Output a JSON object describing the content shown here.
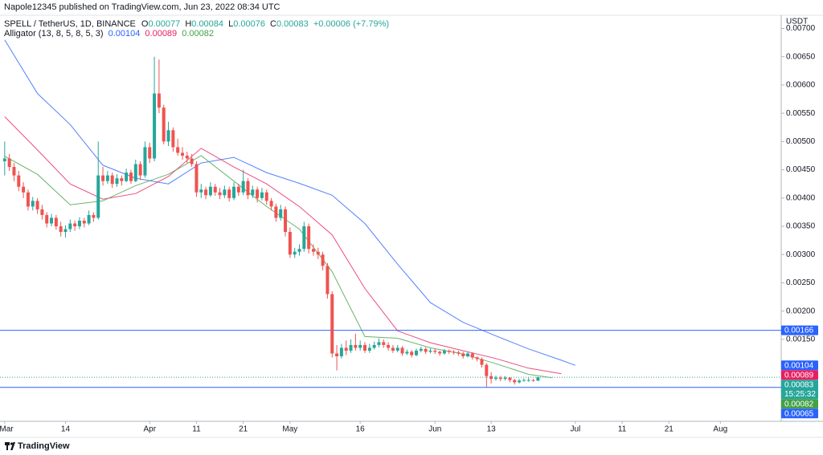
{
  "header": {
    "publisher": "Napole12345 published on TradingView.com, Jun 23, 2022 08:34 UTC",
    "footer": "TradingView"
  },
  "chart_data": {
    "type": "candlestick",
    "title": "SPELL / TetherUS, 1D, BINANCE",
    "ohlc_labels": [
      "O",
      "H",
      "L",
      "C"
    ],
    "change": "+0.00006 (+7.79%)",
    "indicator": "Alligator (13, 8, 5, 8, 5, 3)",
    "currency": "USDT",
    "countdown": "15:25:32",
    "up_color": "#26a69a",
    "down_color": "#ef5350",
    "x": [
      "2022-03-01",
      "2022-03-02",
      "2022-03-03",
      "2022-03-04",
      "2022-03-05",
      "2022-03-06",
      "2022-03-07",
      "2022-03-08",
      "2022-03-09",
      "2022-03-10",
      "2022-03-11",
      "2022-03-12",
      "2022-03-13",
      "2022-03-14",
      "2022-03-15",
      "2022-03-16",
      "2022-03-17",
      "2022-03-18",
      "2022-03-19",
      "2022-03-20",
      "2022-03-21",
      "2022-03-22",
      "2022-03-23",
      "2022-03-24",
      "2022-03-25",
      "2022-03-26",
      "2022-03-27",
      "2022-03-28",
      "2022-03-29",
      "2022-03-30",
      "2022-03-31",
      "2022-04-01",
      "2022-04-02",
      "2022-04-03",
      "2022-04-04",
      "2022-04-05",
      "2022-04-06",
      "2022-04-07",
      "2022-04-08",
      "2022-04-09",
      "2022-04-10",
      "2022-04-11",
      "2022-04-12",
      "2022-04-13",
      "2022-04-14",
      "2022-04-15",
      "2022-04-16",
      "2022-04-17",
      "2022-04-18",
      "2022-04-19",
      "2022-04-20",
      "2022-04-21",
      "2022-04-22",
      "2022-04-23",
      "2022-04-24",
      "2022-04-25",
      "2022-04-26",
      "2022-04-27",
      "2022-04-28",
      "2022-04-29",
      "2022-04-30",
      "2022-05-01",
      "2022-05-02",
      "2022-05-03",
      "2022-05-04",
      "2022-05-05",
      "2022-05-06",
      "2022-05-07",
      "2022-05-08",
      "2022-05-09",
      "2022-05-10",
      "2022-05-11",
      "2022-05-12",
      "2022-05-13",
      "2022-05-14",
      "2022-05-15",
      "2022-05-16",
      "2022-05-17",
      "2022-05-18",
      "2022-05-19",
      "2022-05-20",
      "2022-05-21",
      "2022-05-22",
      "2022-05-23",
      "2022-05-24",
      "2022-05-25",
      "2022-05-26",
      "2022-05-27",
      "2022-05-28",
      "2022-05-29",
      "2022-05-30",
      "2022-05-31",
      "2022-06-01",
      "2022-06-02",
      "2022-06-03",
      "2022-06-04",
      "2022-06-05",
      "2022-06-06",
      "2022-06-07",
      "2022-06-08",
      "2022-06-09",
      "2022-06-10",
      "2022-06-11",
      "2022-06-12",
      "2022-06-13",
      "2022-06-14",
      "2022-06-15",
      "2022-06-16",
      "2022-06-17",
      "2022-06-18",
      "2022-06-19",
      "2022-06-20",
      "2022-06-21",
      "2022-06-22",
      "2022-06-23"
    ],
    "ohlc": [
      [
        0.00465,
        0.005,
        0.0044,
        0.0047
      ],
      [
        0.0047,
        0.00478,
        0.00448,
        0.00455
      ],
      [
        0.00455,
        0.00462,
        0.0043,
        0.0044
      ],
      [
        0.0044,
        0.00448,
        0.00412,
        0.0042
      ],
      [
        0.0042,
        0.00428,
        0.004,
        0.0041
      ],
      [
        0.0041,
        0.00415,
        0.00378,
        0.00385
      ],
      [
        0.00385,
        0.00402,
        0.00378,
        0.00395
      ],
      [
        0.00395,
        0.004,
        0.00372,
        0.0038
      ],
      [
        0.0038,
        0.00388,
        0.00362,
        0.0037
      ],
      [
        0.0037,
        0.00375,
        0.00348,
        0.00355
      ],
      [
        0.00355,
        0.00372,
        0.0035,
        0.00365
      ],
      [
        0.00365,
        0.0037,
        0.00344,
        0.0035
      ],
      [
        0.0035,
        0.00358,
        0.00332,
        0.0034
      ],
      [
        0.0034,
        0.00352,
        0.0033,
        0.00345
      ],
      [
        0.00345,
        0.00362,
        0.0034,
        0.00355
      ],
      [
        0.00355,
        0.0036,
        0.00342,
        0.0035
      ],
      [
        0.0035,
        0.00366,
        0.00345,
        0.0036
      ],
      [
        0.0036,
        0.00365,
        0.00348,
        0.00355
      ],
      [
        0.00355,
        0.00378,
        0.00352,
        0.0037
      ],
      [
        0.0037,
        0.00375,
        0.00358,
        0.00365
      ],
      [
        0.00365,
        0.005,
        0.00362,
        0.0044
      ],
      [
        0.0044,
        0.00455,
        0.00422,
        0.0043
      ],
      [
        0.0043,
        0.00448,
        0.00425,
        0.0044
      ],
      [
        0.0044,
        0.00445,
        0.00418,
        0.00425
      ],
      [
        0.00425,
        0.00442,
        0.0042,
        0.00435
      ],
      [
        0.00435,
        0.0044,
        0.00422,
        0.0043
      ],
      [
        0.0043,
        0.00452,
        0.00428,
        0.00445
      ],
      [
        0.00445,
        0.0045,
        0.00425,
        0.0043
      ],
      [
        0.0043,
        0.00468,
        0.00428,
        0.0046
      ],
      [
        0.0046,
        0.00465,
        0.00432,
        0.0044
      ],
      [
        0.0044,
        0.005,
        0.00436,
        0.0049
      ],
      [
        0.0049,
        0.00498,
        0.00462,
        0.0047
      ],
      [
        0.0047,
        0.0065,
        0.00465,
        0.00585
      ],
      [
        0.00585,
        0.00645,
        0.0055,
        0.0056
      ],
      [
        0.0056,
        0.00565,
        0.00495,
        0.005
      ],
      [
        0.005,
        0.00535,
        0.00492,
        0.0052
      ],
      [
        0.0052,
        0.00525,
        0.00482,
        0.0049
      ],
      [
        0.0049,
        0.00505,
        0.00475,
        0.0048
      ],
      [
        0.0048,
        0.0049,
        0.00468,
        0.00475
      ],
      [
        0.00475,
        0.00482,
        0.00462,
        0.0047
      ],
      [
        0.0047,
        0.00478,
        0.00455,
        0.0046
      ],
      [
        0.0046,
        0.00465,
        0.00402,
        0.0041
      ],
      [
        0.0041,
        0.00425,
        0.004,
        0.00415
      ],
      [
        0.00415,
        0.0042,
        0.00398,
        0.00405
      ],
      [
        0.00405,
        0.00428,
        0.00402,
        0.0042
      ],
      [
        0.0042,
        0.00425,
        0.00404,
        0.0041
      ],
      [
        0.0041,
        0.00418,
        0.00398,
        0.00405
      ],
      [
        0.00405,
        0.00422,
        0.004,
        0.00415
      ],
      [
        0.00415,
        0.0042,
        0.00394,
        0.004
      ],
      [
        0.004,
        0.00428,
        0.00396,
        0.0042
      ],
      [
        0.0042,
        0.00425,
        0.00404,
        0.0041
      ],
      [
        0.0041,
        0.0045,
        0.00405,
        0.0043
      ],
      [
        0.0043,
        0.00435,
        0.00398,
        0.00405
      ],
      [
        0.00405,
        0.00422,
        0.004,
        0.00415
      ],
      [
        0.00415,
        0.0042,
        0.00392,
        0.004
      ],
      [
        0.004,
        0.00418,
        0.00396,
        0.0041
      ],
      [
        0.0041,
        0.00415,
        0.00388,
        0.00395
      ],
      [
        0.00395,
        0.004,
        0.00378,
        0.00385
      ],
      [
        0.00385,
        0.0039,
        0.00358,
        0.00365
      ],
      [
        0.00365,
        0.00388,
        0.0036,
        0.0038
      ],
      [
        0.0038,
        0.00385,
        0.00332,
        0.0034
      ],
      [
        0.0034,
        0.00348,
        0.00294,
        0.003
      ],
      [
        0.003,
        0.00312,
        0.00294,
        0.00305
      ],
      [
        0.00305,
        0.00318,
        0.00298,
        0.0031
      ],
      [
        0.0031,
        0.00358,
        0.00305,
        0.0035
      ],
      [
        0.0035,
        0.00355,
        0.00302,
        0.0031
      ],
      [
        0.0031,
        0.00318,
        0.00298,
        0.00305
      ],
      [
        0.00305,
        0.00312,
        0.00292,
        0.003
      ],
      [
        0.003,
        0.00305,
        0.00272,
        0.0028
      ],
      [
        0.0028,
        0.00285,
        0.00222,
        0.0023
      ],
      [
        0.0023,
        0.00235,
        0.00118,
        0.00125
      ],
      [
        0.00125,
        0.0014,
        0.00095,
        0.0012
      ],
      [
        0.0012,
        0.00142,
        0.00116,
        0.00135
      ],
      [
        0.00135,
        0.00148,
        0.00122,
        0.0013
      ],
      [
        0.0013,
        0.0015,
        0.00126,
        0.0014
      ],
      [
        0.0014,
        0.0016,
        0.0013,
        0.00135
      ],
      [
        0.00135,
        0.00148,
        0.0013,
        0.0014
      ],
      [
        0.0014,
        0.00145,
        0.00126,
        0.0013
      ],
      [
        0.0013,
        0.00142,
        0.00126,
        0.00135
      ],
      [
        0.00135,
        0.00146,
        0.00132,
        0.0014
      ],
      [
        0.0014,
        0.00152,
        0.00136,
        0.00145
      ],
      [
        0.00145,
        0.0015,
        0.00135,
        0.0014
      ],
      [
        0.0014,
        0.00145,
        0.0013,
        0.00135
      ],
      [
        0.00135,
        0.0014,
        0.00126,
        0.0013
      ],
      [
        0.0013,
        0.0014,
        0.00127,
        0.00135
      ],
      [
        0.00135,
        0.00138,
        0.00121,
        0.00125
      ],
      [
        0.00125,
        0.00132,
        0.00122,
        0.00128
      ],
      [
        0.00128,
        0.00131,
        0.00118,
        0.00122
      ],
      [
        0.00122,
        0.00134,
        0.0012,
        0.0013
      ],
      [
        0.0013,
        0.00137,
        0.00127,
        0.00133
      ],
      [
        0.00133,
        0.00136,
        0.00124,
        0.00128
      ],
      [
        0.00128,
        0.00134,
        0.00125,
        0.0013
      ],
      [
        0.0013,
        0.00133,
        0.00124,
        0.00128
      ],
      [
        0.00128,
        0.0013,
        0.00121,
        0.00125
      ],
      [
        0.00125,
        0.00133,
        0.00123,
        0.0013
      ],
      [
        0.0013,
        0.00132,
        0.00124,
        0.00128
      ],
      [
        0.00128,
        0.00131,
        0.00123,
        0.00127
      ],
      [
        0.00127,
        0.0013,
        0.00121,
        0.00125
      ],
      [
        0.00125,
        0.00128,
        0.00116,
        0.0012
      ],
      [
        0.0012,
        0.00128,
        0.00118,
        0.00125
      ],
      [
        0.00125,
        0.00127,
        0.00114,
        0.00118
      ],
      [
        0.00118,
        0.0012,
        0.00111,
        0.00115
      ],
      [
        0.00115,
        0.00118,
        0.001,
        0.00105
      ],
      [
        0.00105,
        0.00108,
        0.00065,
        0.00085
      ],
      [
        0.00085,
        0.00092,
        0.00072,
        0.0008
      ],
      [
        0.0008,
        0.00086,
        0.00077,
        0.00082
      ],
      [
        0.00082,
        0.00085,
        0.00076,
        0.0008
      ],
      [
        0.0008,
        0.00085,
        0.00077,
        0.00082
      ],
      [
        0.00082,
        0.00083,
        0.00074,
        0.00078
      ],
      [
        0.00078,
        0.0008,
        0.0007,
        0.00074
      ],
      [
        0.00074,
        0.0008,
        0.00072,
        0.00077
      ],
      [
        0.00077,
        0.00081,
        0.00075,
        0.00078
      ],
      [
        0.00078,
        0.00082,
        0.00075,
        0.00078
      ],
      [
        0.00078,
        0.0008,
        0.00075,
        0.00077
      ],
      [
        0.00077,
        0.00084,
        0.00076,
        0.00083
      ]
    ],
    "series": [
      {
        "color": "#2962ff",
        "x": [
          "2022-03-01",
          "2022-03-08",
          "2022-03-15",
          "2022-03-22",
          "2022-03-29",
          "2022-04-05",
          "2022-04-12",
          "2022-04-19",
          "2022-04-26",
          "2022-05-03",
          "2022-05-10",
          "2022-05-17",
          "2022-05-24",
          "2022-05-31",
          "2022-06-07",
          "2022-06-14",
          "2022-06-21",
          "2022-06-28",
          "2022-07-01"
        ],
        "values": [
          0.0068,
          0.00585,
          0.0053,
          0.00458,
          0.00435,
          0.00425,
          0.00462,
          0.00472,
          0.00445,
          0.00426,
          0.00405,
          0.00355,
          0.00283,
          0.00215,
          0.0018,
          0.00156,
          0.00133,
          0.00113,
          0.00104
        ]
      },
      {
        "color": "#e91e63",
        "x": [
          "2022-03-01",
          "2022-03-08",
          "2022-03-15",
          "2022-03-22",
          "2022-03-29",
          "2022-04-05",
          "2022-04-12",
          "2022-04-19",
          "2022-04-26",
          "2022-05-03",
          "2022-05-10",
          "2022-05-17",
          "2022-05-24",
          "2022-05-31",
          "2022-06-07",
          "2022-06-14",
          "2022-06-21",
          "2022-06-28"
        ],
        "values": [
          0.00544,
          0.00485,
          0.00425,
          0.00398,
          0.00408,
          0.00438,
          0.00488,
          0.00455,
          0.00425,
          0.00385,
          0.00335,
          0.0024,
          0.00165,
          0.00144,
          0.0013,
          0.00116,
          0.00099,
          0.00089
        ]
      },
      {
        "color": "#43a047",
        "x": [
          "2022-03-01",
          "2022-03-08",
          "2022-03-15",
          "2022-03-22",
          "2022-03-29",
          "2022-04-05",
          "2022-04-12",
          "2022-04-19",
          "2022-04-26",
          "2022-05-03",
          "2022-05-10",
          "2022-05-17",
          "2022-05-24",
          "2022-05-31",
          "2022-06-07",
          "2022-06-14",
          "2022-06-21",
          "2022-06-26"
        ],
        "values": [
          0.00474,
          0.00442,
          0.00388,
          0.00395,
          0.00422,
          0.00442,
          0.00475,
          0.0043,
          0.00385,
          0.00345,
          0.0027,
          0.00155,
          0.00152,
          0.00135,
          0.00124,
          0.00107,
          0.00088,
          0.00082
        ]
      }
    ],
    "hlines": [
      {
        "value": 0.00166,
        "color": "#2962ff"
      },
      {
        "value": 0.00065,
        "color": "#2962ff"
      }
    ],
    "xlim": [
      "2022-02-28",
      "2022-08-14"
    ],
    "ylim": [
      5e-05,
      0.00722
    ],
    "xticks": [
      {
        "value": "2022-03-01",
        "label": "Mar"
      },
      {
        "value": "2022-03-14",
        "label": "14"
      },
      {
        "value": "2022-04-01",
        "label": "Apr"
      },
      {
        "value": "2022-04-11",
        "label": "11"
      },
      {
        "value": "2022-04-21",
        "label": "21"
      },
      {
        "value": "2022-05-01",
        "label": "May"
      },
      {
        "value": "2022-05-16",
        "label": "16"
      },
      {
        "value": "2022-06-01",
        "label": "Jun"
      },
      {
        "value": "2022-06-13",
        "label": "13"
      },
      {
        "value": "2022-07-01",
        "label": "Jul"
      },
      {
        "value": "2022-07-11",
        "label": "11"
      },
      {
        "value": "2022-07-21",
        "label": "21"
      },
      {
        "value": "2022-08-01",
        "label": "Aug"
      }
    ],
    "yticks": [
      {
        "value": 0.007,
        "label": "0.00700"
      },
      {
        "value": 0.0065,
        "label": "0.00650"
      },
      {
        "value": 0.006,
        "label": "0.00600"
      },
      {
        "value": 0.0055,
        "label": "0.00550"
      },
      {
        "value": 0.005,
        "label": "0.00500"
      },
      {
        "value": 0.0045,
        "label": "0.00450"
      },
      {
        "value": 0.004,
        "label": "0.00400"
      },
      {
        "value": 0.0035,
        "label": "0.00350"
      },
      {
        "value": 0.003,
        "label": "0.00300"
      },
      {
        "value": 0.0025,
        "label": "0.00250"
      },
      {
        "value": 0.002,
        "label": "0.00200"
      },
      {
        "value": 0.0015,
        "label": "0.00150"
      }
    ],
    "grid": false
  }
}
